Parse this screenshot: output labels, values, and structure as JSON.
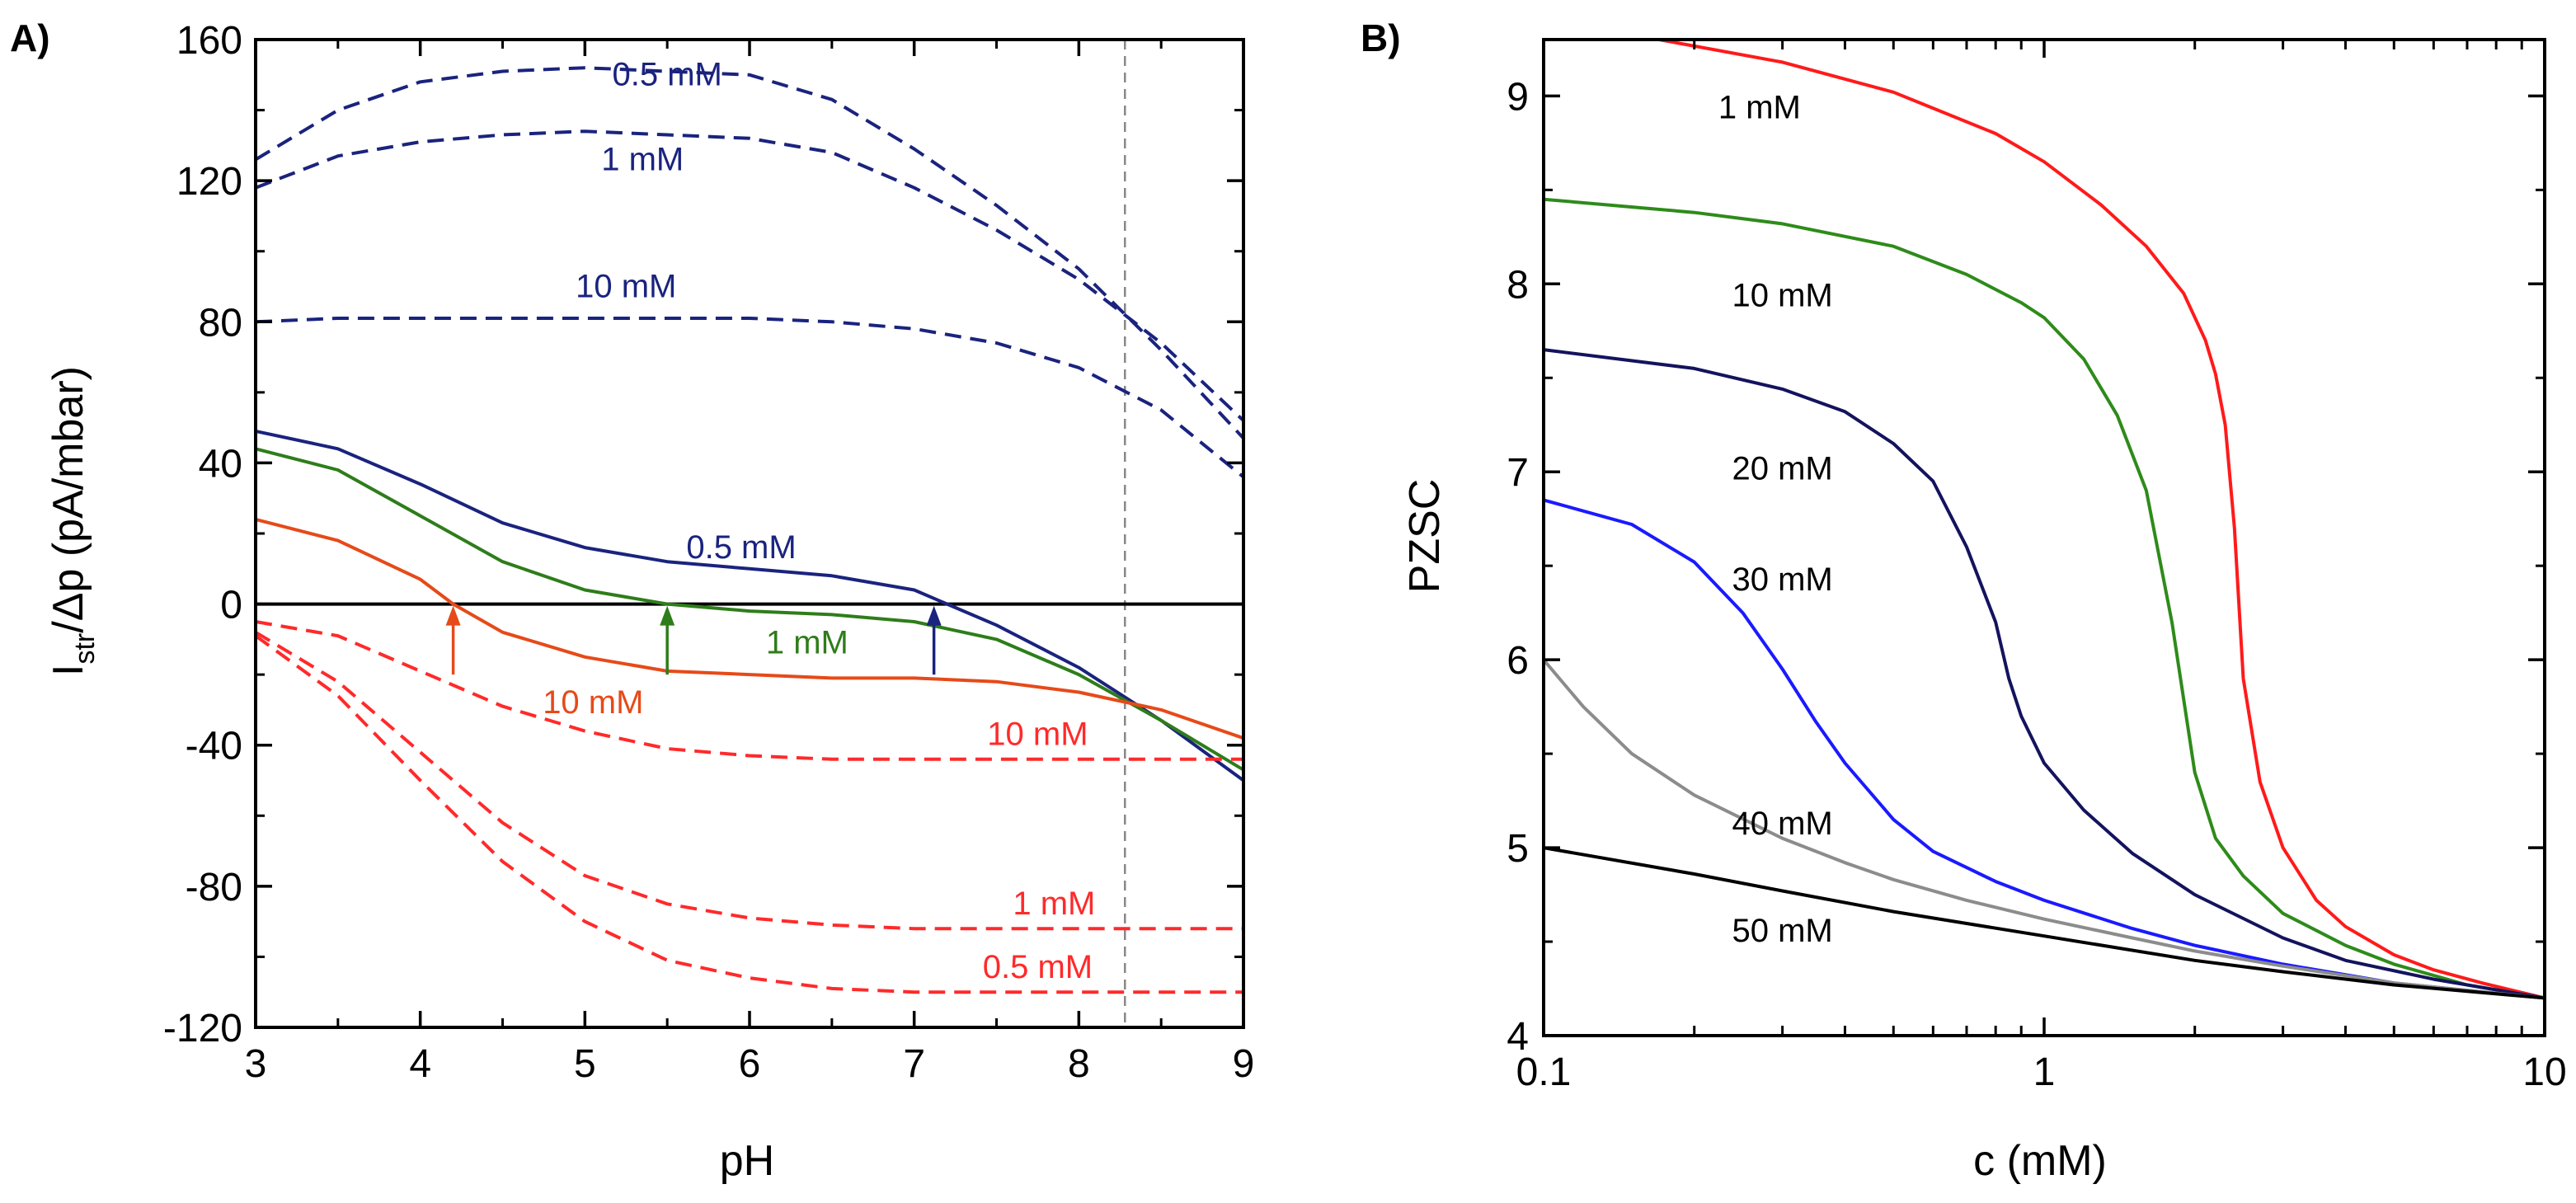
{
  "chart_data": [
    {
      "panel": "A)",
      "type": "line",
      "xlabel": "pH",
      "ylabel_main": "I",
      "ylabel_sub": "str",
      "ylabel_rest": "/Δp (pA/mbar)",
      "xlim": [
        3,
        9
      ],
      "ylim": [
        -120,
        160
      ],
      "xticks": [
        "3",
        "4",
        "5",
        "6",
        "7",
        "8",
        "9"
      ],
      "yticks": [
        "-120",
        "-80",
        "-40",
        "0",
        "40",
        "80",
        "120",
        "160"
      ],
      "vline_x": 8.28,
      "colors": {
        "blue": "#1a237e",
        "green": "#2e7d1a",
        "orange": "#e64a19",
        "red": "#ff2a2a"
      },
      "series": [
        {
          "name": "0.5 mM",
          "color": "#1a237e",
          "dash": true,
          "x": [
            3.0,
            3.5,
            4.0,
            4.5,
            5.0,
            5.5,
            6.0,
            6.5,
            7.0,
            7.5,
            8.0,
            8.5,
            9.0
          ],
          "y": [
            126,
            140,
            148,
            151,
            152,
            151,
            150,
            143,
            129,
            113,
            95,
            72,
            47
          ]
        },
        {
          "name": "1 mM",
          "color": "#1a237e",
          "dash": true,
          "x": [
            3.0,
            3.5,
            4.0,
            4.5,
            5.0,
            5.5,
            6.0,
            6.5,
            7.0,
            7.5,
            8.0,
            8.5,
            9.0
          ],
          "y": [
            118,
            127,
            131,
            133,
            134,
            133,
            132,
            128,
            118,
            106,
            92,
            74,
            52
          ]
        },
        {
          "name": "10 mM",
          "color": "#1a237e",
          "dash": true,
          "x": [
            3.0,
            3.5,
            4.0,
            4.5,
            5.0,
            5.5,
            6.0,
            6.5,
            7.0,
            7.5,
            8.0,
            8.5,
            9.0
          ],
          "y": [
            80,
            81,
            81,
            81,
            81,
            81,
            81,
            80,
            78,
            74,
            67,
            55,
            36
          ]
        },
        {
          "name": "0.5 mM",
          "color": "#1a237e",
          "dash": false,
          "x": [
            3.0,
            3.5,
            4.0,
            4.5,
            5.0,
            5.5,
            6.0,
            6.5,
            7.0,
            7.2,
            7.5,
            8.0,
            8.5,
            9.0
          ],
          "y": [
            49,
            44,
            34,
            23,
            16,
            12,
            10,
            8,
            4,
            0,
            -6,
            -18,
            -33,
            -50
          ]
        },
        {
          "name": "1 mM",
          "color": "#2e7d1a",
          "dash": false,
          "x": [
            3.0,
            3.5,
            4.0,
            4.5,
            5.0,
            5.5,
            6.0,
            6.5,
            7.0,
            7.5,
            8.0,
            8.5,
            9.0
          ],
          "y": [
            44,
            38,
            25,
            12,
            4,
            0,
            -2,
            -3,
            -5,
            -10,
            -20,
            -33,
            -47
          ]
        },
        {
          "name": "10 mM",
          "color": "#e64a19",
          "dash": false,
          "x": [
            3.0,
            3.5,
            4.0,
            4.2,
            4.5,
            5.0,
            5.5,
            6.0,
            6.5,
            7.0,
            7.5,
            8.0,
            8.5,
            9.0
          ],
          "y": [
            24,
            18,
            7,
            0,
            -8,
            -15,
            -19,
            -20,
            -21,
            -21,
            -22,
            -25,
            -30,
            -38
          ]
        },
        {
          "name": "10 mM",
          "color": "#ff2a2a",
          "dash": true,
          "x": [
            3.0,
            3.5,
            4.0,
            4.5,
            5.0,
            5.5,
            6.0,
            6.5,
            7.0,
            7.5,
            8.0,
            8.5,
            9.0
          ],
          "y": [
            -5,
            -9,
            -19,
            -29,
            -36,
            -41,
            -43,
            -44,
            -44,
            -44,
            -44,
            -44,
            -44
          ]
        },
        {
          "name": "1 mM",
          "color": "#ff2a2a",
          "dash": true,
          "x": [
            3.0,
            3.5,
            4.0,
            4.5,
            5.0,
            5.5,
            6.0,
            6.5,
            7.0,
            7.5,
            8.0,
            8.5,
            9.0
          ],
          "y": [
            -8,
            -22,
            -42,
            -62,
            -77,
            -85,
            -89,
            -91,
            -92,
            -92,
            -92,
            -92,
            -92
          ]
        },
        {
          "name": "0.5 mM",
          "color": "#ff2a2a",
          "dash": true,
          "x": [
            3.0,
            3.5,
            4.0,
            4.5,
            5.0,
            5.5,
            6.0,
            6.5,
            7.0,
            7.5,
            8.0,
            8.5,
            9.0
          ],
          "y": [
            -9,
            -26,
            -50,
            -73,
            -90,
            -101,
            -106,
            -109,
            -110,
            -110,
            -110,
            -110,
            -110
          ]
        }
      ],
      "arrows": [
        {
          "x": 4.2,
          "color": "#e64a19"
        },
        {
          "x": 5.5,
          "color": "#2e7d1a"
        },
        {
          "x": 7.12,
          "color": "#1a237e"
        }
      ],
      "annotations": [
        {
          "text": "0.5 mM",
          "x": 5.5,
          "y": 147,
          "color": "#1a237e"
        },
        {
          "text": "1 mM",
          "x": 5.35,
          "y": 123,
          "color": "#1a237e"
        },
        {
          "text": "10 mM",
          "x": 5.25,
          "y": 87,
          "color": "#1a237e"
        },
        {
          "text": "0.5 mM",
          "x": 5.95,
          "y": 13,
          "color": "#1a237e"
        },
        {
          "text": "1 mM",
          "x": 6.35,
          "y": -14,
          "color": "#2e7d1a"
        },
        {
          "text": "10 mM",
          "x": 5.05,
          "y": -31,
          "color": "#e64a19"
        },
        {
          "text": "10 mM",
          "x": 7.75,
          "y": -40,
          "color": "#ff2a2a"
        },
        {
          "text": "1 mM",
          "x": 7.85,
          "y": -88,
          "color": "#ff2a2a"
        },
        {
          "text": "0.5 mM",
          "x": 7.75,
          "y": -106,
          "color": "#ff2a2a"
        }
      ]
    },
    {
      "panel": "B)",
      "type": "line",
      "xlabel": "c (mM)",
      "ylabel": "PZSC",
      "xscale": "log",
      "xlim": [
        0.1,
        10
      ],
      "ylim": [
        4,
        9.3
      ],
      "xticks": [
        {
          "value": 0.1,
          "label": "0.1"
        },
        {
          "value": 1,
          "label": "1"
        },
        {
          "value": 10,
          "label": "10"
        }
      ],
      "yticks": [
        "4",
        "5",
        "6",
        "7",
        "8",
        "9"
      ],
      "series": [
        {
          "name": "1 mM",
          "color": "#ff1a1a",
          "x": [
            0.17,
            0.3,
            0.5,
            0.8,
            1.0,
            1.3,
            1.6,
            1.9,
            2.1,
            2.2,
            2.3,
            2.4,
            2.5,
            2.7,
            3.0,
            3.5,
            4.0,
            5.0,
            6.0,
            7.5,
            10.0
          ],
          "y": [
            9.3,
            9.18,
            9.02,
            8.8,
            8.65,
            8.42,
            8.2,
            7.95,
            7.7,
            7.52,
            7.25,
            6.7,
            5.9,
            5.35,
            5.0,
            4.72,
            4.58,
            4.43,
            4.35,
            4.28,
            4.2
          ]
        },
        {
          "name": "10 mM",
          "color": "#2e8b1a",
          "x": [
            0.1,
            0.2,
            0.3,
            0.5,
            0.7,
            0.9,
            1.0,
            1.2,
            1.4,
            1.6,
            1.8,
            2.0,
            2.2,
            2.5,
            3.0,
            4.0,
            5.0,
            7.0,
            10.0
          ],
          "y": [
            8.45,
            8.38,
            8.32,
            8.2,
            8.05,
            7.9,
            7.82,
            7.6,
            7.3,
            6.9,
            6.2,
            5.4,
            5.05,
            4.85,
            4.65,
            4.48,
            4.38,
            4.27,
            4.2
          ]
        },
        {
          "name": "20 mM",
          "color": "#14135e",
          "x": [
            0.1,
            0.2,
            0.3,
            0.4,
            0.5,
            0.6,
            0.7,
            0.8,
            0.85,
            0.9,
            1.0,
            1.2,
            1.5,
            2.0,
            3.0,
            4.0,
            6.0,
            10.0
          ],
          "y": [
            7.65,
            7.55,
            7.44,
            7.32,
            7.15,
            6.95,
            6.6,
            6.2,
            5.9,
            5.7,
            5.45,
            5.2,
            4.97,
            4.75,
            4.52,
            4.4,
            4.3,
            4.2
          ]
        },
        {
          "name": "30 mM",
          "color": "#1a1aff",
          "x": [
            0.1,
            0.15,
            0.2,
            0.25,
            0.3,
            0.35,
            0.4,
            0.5,
            0.6,
            0.8,
            1.0,
            1.5,
            2.0,
            3.0,
            5.0,
            7.0,
            10.0
          ],
          "y": [
            6.85,
            6.72,
            6.52,
            6.25,
            5.95,
            5.67,
            5.45,
            5.15,
            4.98,
            4.82,
            4.72,
            4.57,
            4.48,
            4.38,
            4.28,
            4.24,
            4.2
          ]
        },
        {
          "name": "40 mM",
          "color": "#8c8c8c",
          "x": [
            0.1,
            0.12,
            0.15,
            0.2,
            0.3,
            0.4,
            0.5,
            0.7,
            1.0,
            1.5,
            2.0,
            3.0,
            5.0,
            10.0
          ],
          "y": [
            6.0,
            5.75,
            5.5,
            5.28,
            5.05,
            4.92,
            4.83,
            4.72,
            4.62,
            4.52,
            4.45,
            4.37,
            4.28,
            4.2
          ]
        },
        {
          "name": "50 mM",
          "color": "#000000",
          "x": [
            0.1,
            0.2,
            0.3,
            0.5,
            1.0,
            2.0,
            3.0,
            5.0,
            10.0
          ],
          "y": [
            5.0,
            4.86,
            4.77,
            4.66,
            4.53,
            4.4,
            4.34,
            4.27,
            4.2
          ]
        }
      ],
      "annotations": [
        {
          "text": "1 mM",
          "x": 0.27,
          "y": 8.88
        },
        {
          "text": "10 mM",
          "x": 0.3,
          "y": 7.88
        },
        {
          "text": "20 mM",
          "x": 0.3,
          "y": 6.96
        },
        {
          "text": "30 mM",
          "x": 0.3,
          "y": 6.37
        },
        {
          "text": "40 mM",
          "x": 0.3,
          "y": 5.07
        },
        {
          "text": "50 mM",
          "x": 0.3,
          "y": 4.5
        }
      ]
    }
  ]
}
